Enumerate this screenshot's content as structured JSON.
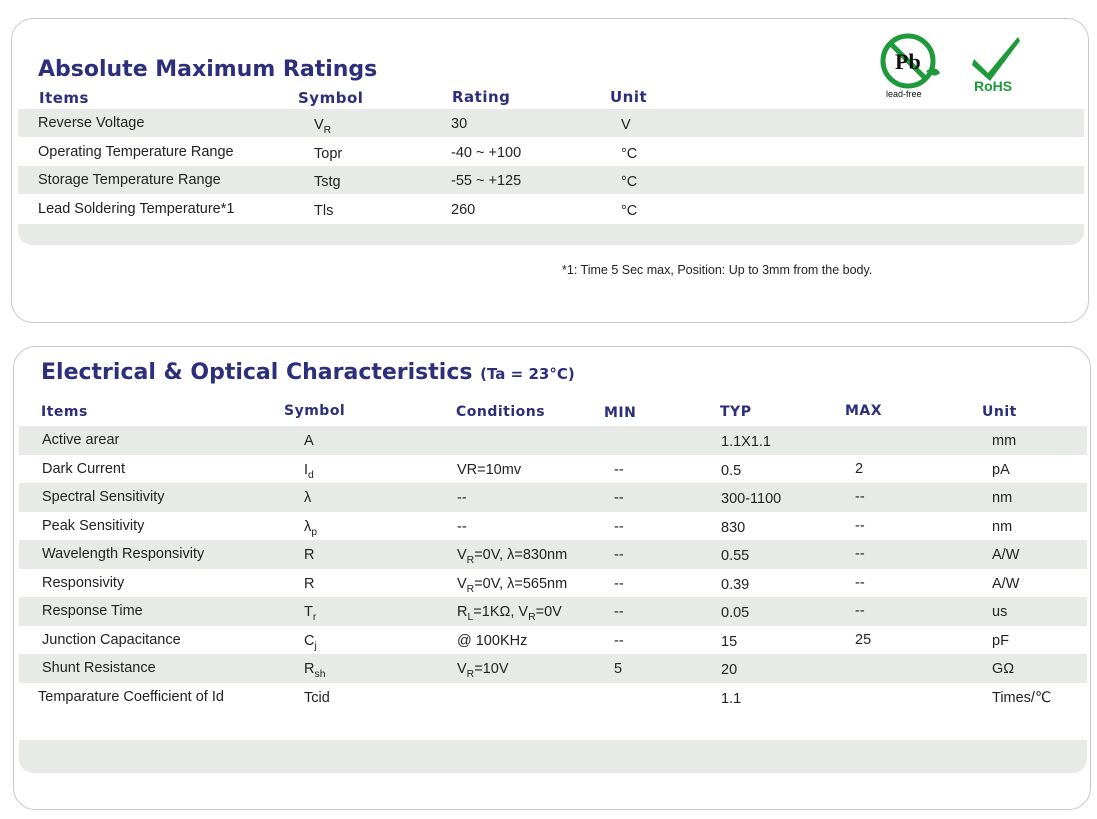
{
  "abs": {
    "title": "Absolute Maximum Ratings",
    "headers": {
      "items": "Items",
      "symbol": "Symbol",
      "rating": "Rating",
      "unit": "Unit"
    },
    "rows": [
      {
        "item": "Reverse Voltage",
        "sym_main": "V",
        "sym_sub": "R",
        "rating": "30",
        "unit": "V"
      },
      {
        "item": "Operating Temperature Range",
        "sym_main": "Topr",
        "sym_sub": "",
        "rating": "-40 ~ +100",
        "unit": "°C"
      },
      {
        "item": "Storage Temperature Range",
        "sym_main": "Tstg",
        "sym_sub": "",
        "rating": "-55 ~ +125",
        "unit": "°C"
      },
      {
        "item": "Lead Soldering Temperature*1",
        "sym_main": "Tls",
        "sym_sub": "",
        "rating": "260",
        "unit": "°C"
      }
    ],
    "note": "*1: Time 5 Sec max, Position: Up to 3mm from the body."
  },
  "logos": {
    "pb_text": "Pb",
    "leadfree_label": "lead-free",
    "rohs_label": "RoHS",
    "green": "#1e9a3a"
  },
  "elec": {
    "title": "Electrical & Optical Characteristics",
    "subtitle": "(Ta = 23°C)",
    "headers": {
      "items": "Items",
      "symbol": "Symbol",
      "conditions": "Conditions",
      "min": "MIN",
      "typ": "TYP",
      "max": "MAX",
      "unit": "Unit"
    },
    "rows": [
      {
        "item": "Active arear",
        "sym_main": "A",
        "sym_sub": "",
        "cond": [],
        "min": "",
        "typ": "1.1X1.1",
        "max": "",
        "unit": "mm"
      },
      {
        "item": "Dark Current",
        "sym_main": "I",
        "sym_sub": "d",
        "cond": [
          [
            "VR=10mv",
            ""
          ]
        ],
        "min": "--",
        "typ": "0.5",
        "max": "2",
        "unit": "pA"
      },
      {
        "item": "Spectral Sensitivity",
        "sym_main": "λ",
        "sym_sub": "",
        "cond": [
          [
            "--",
            ""
          ]
        ],
        "min": "--",
        "typ": "300-1100",
        "max": "--",
        "unit": "nm"
      },
      {
        "item": "Peak Sensitivity",
        "sym_main": "λ",
        "sym_sub": "p",
        "cond": [
          [
            "--",
            ""
          ]
        ],
        "min": "--",
        "typ": "830",
        "max": "--",
        "unit": "nm"
      },
      {
        "item": "Wavelength Responsivity",
        "sym_main": "R",
        "sym_sub": "",
        "cond": [
          [
            "V",
            "R"
          ],
          [
            "=0V, λ=830nm",
            ""
          ]
        ],
        "min": "--",
        "typ": "0.55",
        "max": "--",
        "unit": "A/W"
      },
      {
        "item": "Responsivity",
        "sym_main": "R",
        "sym_sub": "",
        "cond": [
          [
            "V",
            "R"
          ],
          [
            "=0V, λ=565nm",
            ""
          ]
        ],
        "min": "--",
        "typ": "0.39",
        "max": "--",
        "unit": "A/W"
      },
      {
        "item": "Response Time",
        "sym_main": "T",
        "sym_sub": "r",
        "cond": [
          [
            "R",
            "L"
          ],
          [
            "=1KΩ, V",
            ""
          ],
          [
            "",
            "R"
          ],
          [
            "=0V",
            ""
          ]
        ],
        "min": "--",
        "typ": "0.05",
        "max": "--",
        "unit": "us"
      },
      {
        "item": "Junction Capacitance",
        "sym_main": "C",
        "sym_sub": "j",
        "cond": [
          [
            "@ 100KHz",
            ""
          ]
        ],
        "min": "--",
        "typ": "15",
        "max": "25",
        "unit": "pF"
      },
      {
        "item": "Shunt Resistance",
        "sym_main": "R",
        "sym_sub": "sh",
        "cond": [
          [
            "V",
            "R"
          ],
          [
            "=10V",
            ""
          ]
        ],
        "min": "5",
        "typ": "20",
        "max": "",
        "unit": "GΩ"
      },
      {
        "item": "Temparature Coefficient of Id",
        "sym_main": "Tcid",
        "sym_sub": "",
        "cond": [],
        "min": "",
        "typ": "1.1",
        "max": "",
        "unit": "Times/℃"
      }
    ]
  }
}
